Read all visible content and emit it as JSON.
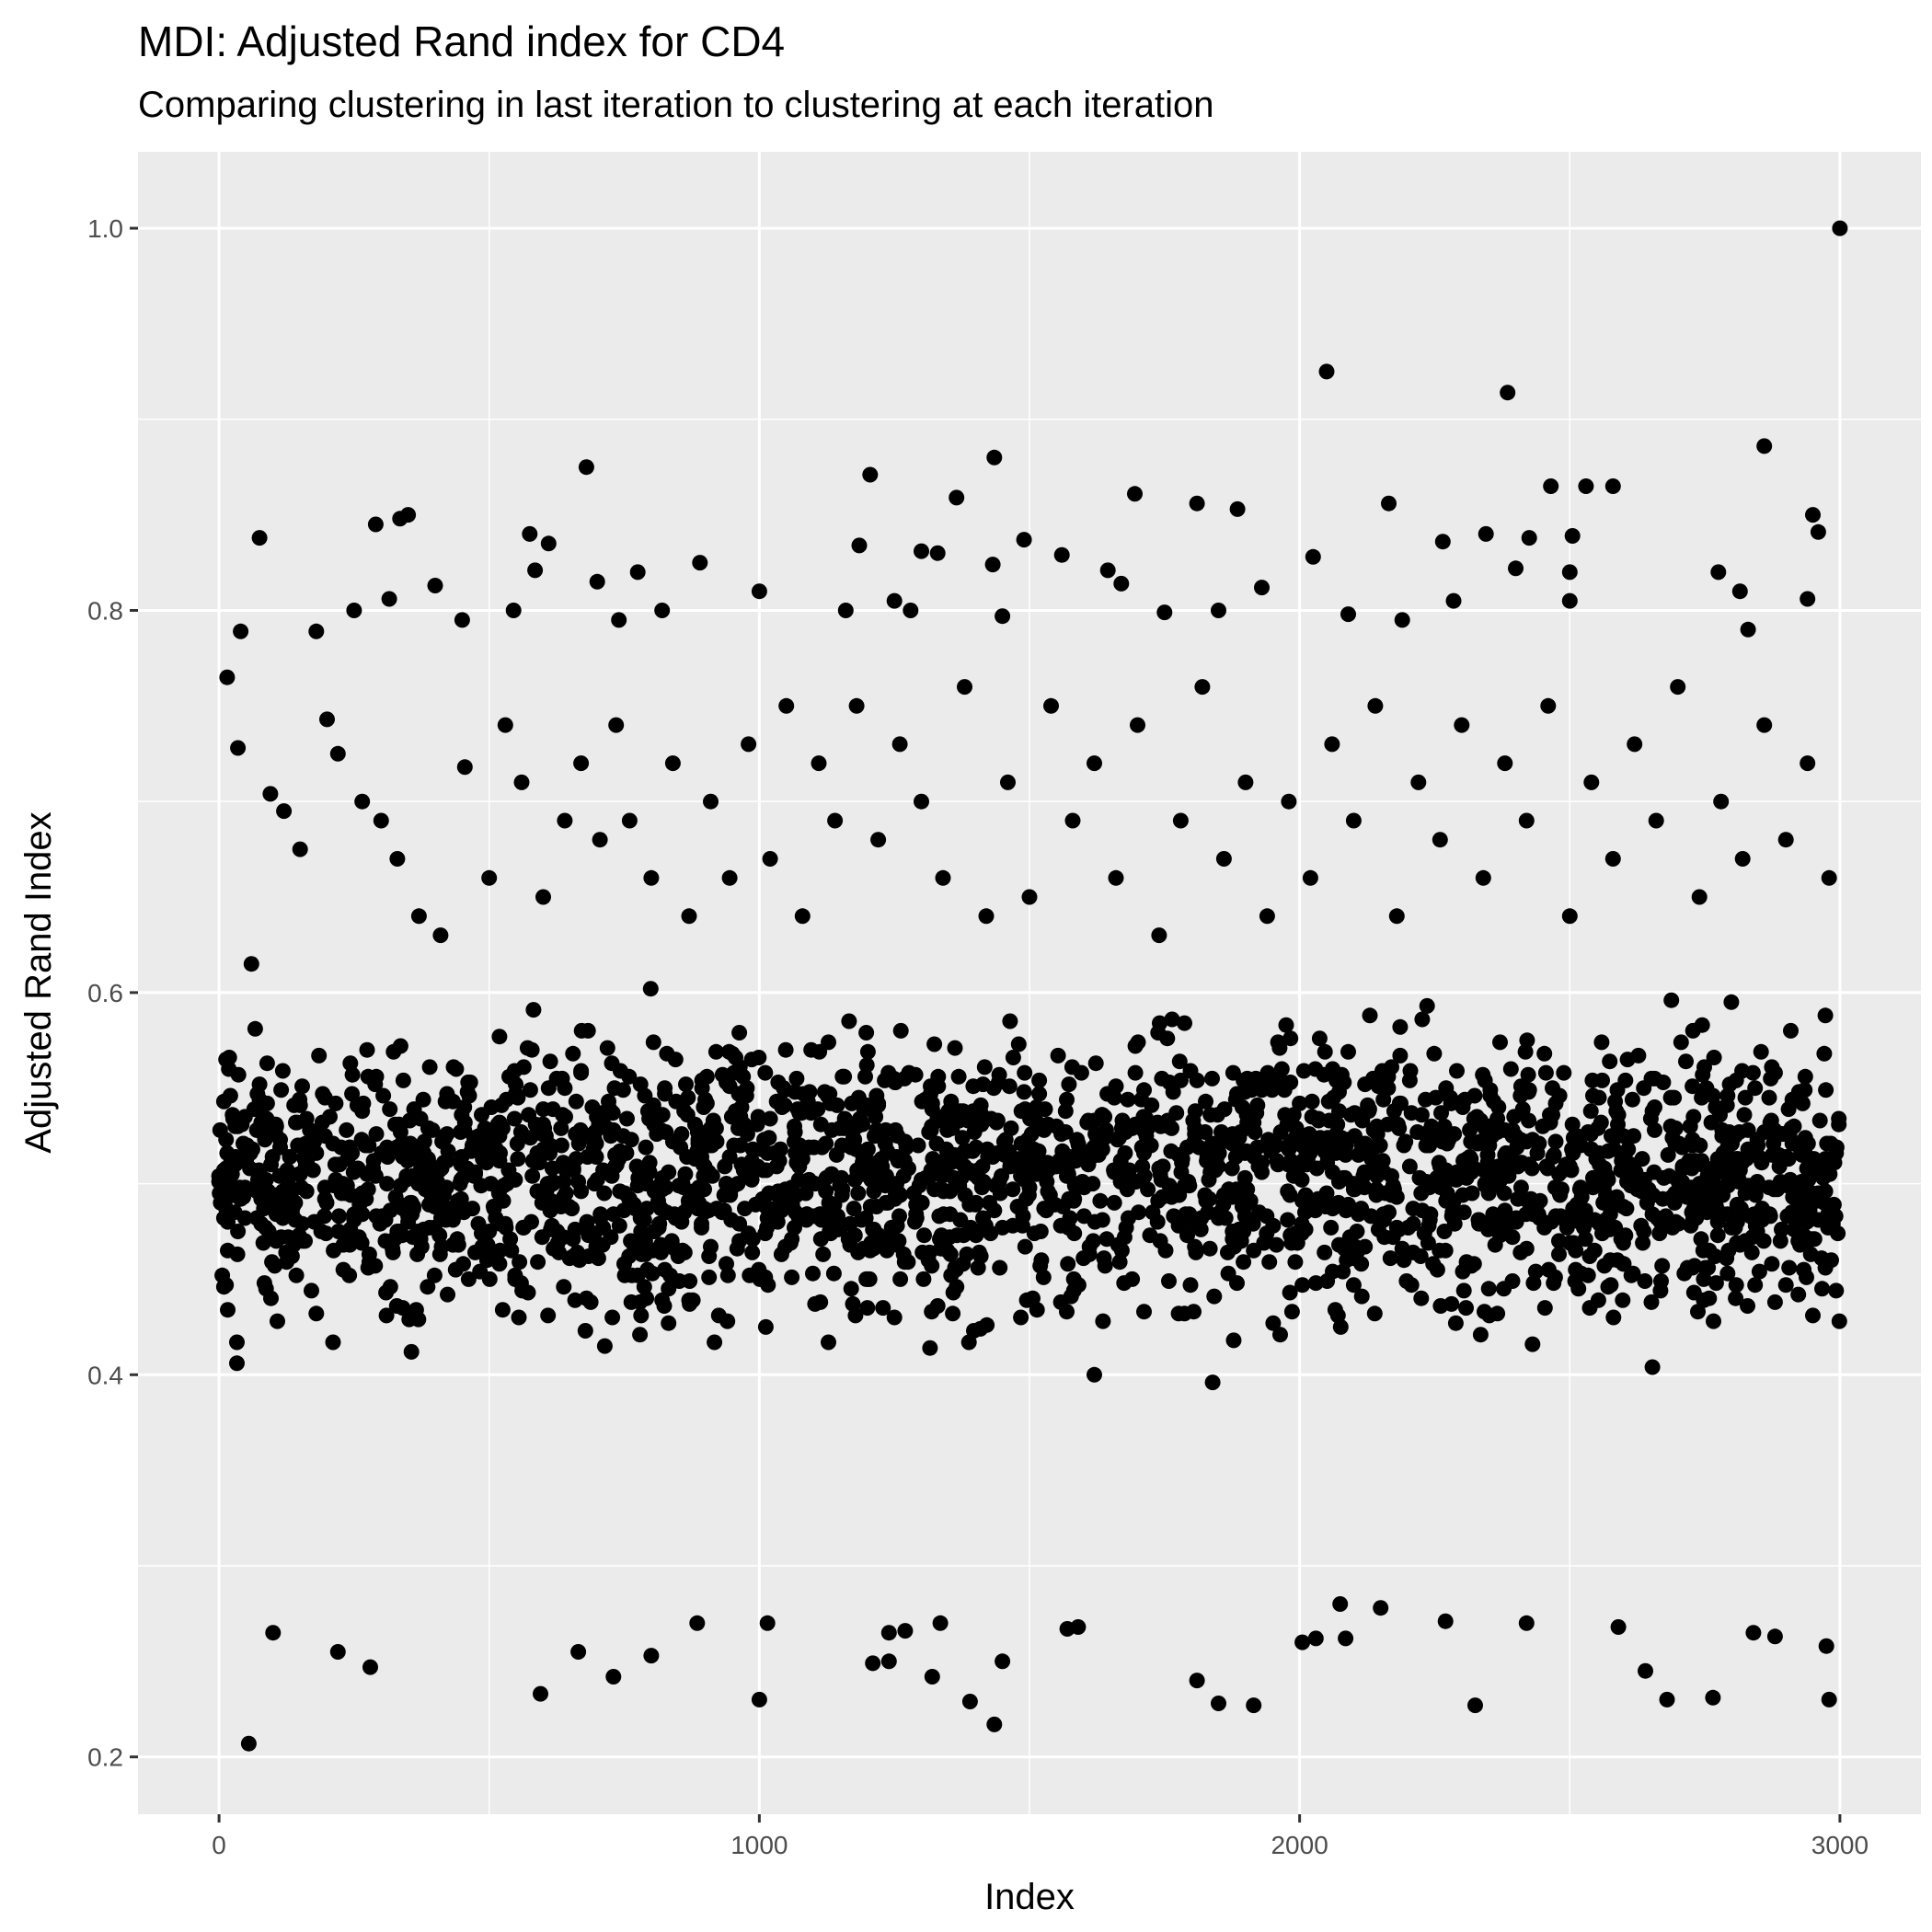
{
  "chart_data": {
    "type": "scatter",
    "title": "MDI: Adjusted Rand index for CD4",
    "subtitle": "Comparing clustering in last iteration to clustering at each iteration",
    "xlabel": "Index",
    "ylabel": "Adjusted Rand Index",
    "xlim": [
      -150,
      3150
    ],
    "ylim": [
      0.17,
      1.04
    ],
    "x_ticks": [
      0,
      1000,
      2000,
      3000
    ],
    "x_tick_labels": [
      "0",
      "1000",
      "2000",
      "3000"
    ],
    "y_ticks": [
      0.2,
      0.4,
      0.6,
      0.8,
      1.0
    ],
    "y_tick_labels": [
      "0.2",
      "0.4",
      "0.6",
      "0.8",
      "1.0"
    ],
    "grid": true,
    "panel_background": "#ebebeb",
    "gridline_color": "#ffffff",
    "point_color": "#000000",
    "point_count": 3000,
    "points": [
      [
        3000,
        1.0
      ],
      [
        2050,
        0.925
      ],
      [
        2385,
        0.914
      ],
      [
        2860,
        0.886
      ],
      [
        1435,
        0.88
      ],
      [
        680,
        0.875
      ],
      [
        1205,
        0.871
      ],
      [
        2465,
        0.865
      ],
      [
        2530,
        0.865
      ],
      [
        2580,
        0.865
      ],
      [
        1695,
        0.861
      ],
      [
        1365,
        0.859
      ],
      [
        1810,
        0.856
      ],
      [
        2165,
        0.856
      ],
      [
        1885,
        0.853
      ],
      [
        2950,
        0.85
      ],
      [
        350,
        0.85
      ],
      [
        335,
        0.848
      ],
      [
        290,
        0.845
      ],
      [
        2960,
        0.841
      ],
      [
        2345,
        0.84
      ],
      [
        75,
        0.838
      ],
      [
        575,
        0.84
      ],
      [
        2505,
        0.839
      ],
      [
        2425,
        0.838
      ],
      [
        1490,
        0.837
      ],
      [
        610,
        0.835
      ],
      [
        1185,
        0.834
      ],
      [
        2265,
        0.836
      ],
      [
        1300,
        0.831
      ],
      [
        1330,
        0.83
      ],
      [
        1560,
        0.829
      ],
      [
        2025,
        0.828
      ],
      [
        890,
        0.825
      ],
      [
        1432,
        0.824
      ],
      [
        2400,
        0.822
      ],
      [
        1645,
        0.821
      ],
      [
        585,
        0.821
      ],
      [
        2775,
        0.82
      ],
      [
        775,
        0.82
      ],
      [
        2500,
        0.82
      ],
      [
        1930,
        0.812
      ],
      [
        1670,
        0.814
      ],
      [
        400,
        0.813
      ],
      [
        1000,
        0.81
      ],
      [
        2940,
        0.806
      ],
      [
        40,
        0.789
      ],
      [
        15,
        0.765
      ],
      [
        180,
        0.789
      ],
      [
        250,
        0.8
      ],
      [
        315,
        0.806
      ],
      [
        450,
        0.795
      ],
      [
        545,
        0.8
      ],
      [
        700,
        0.815
      ],
      [
        740,
        0.795
      ],
      [
        820,
        0.8
      ],
      [
        1160,
        0.8
      ],
      [
        1250,
        0.805
      ],
      [
        1280,
        0.8
      ],
      [
        1450,
        0.797
      ],
      [
        1750,
        0.799
      ],
      [
        1850,
        0.8
      ],
      [
        2090,
        0.798
      ],
      [
        2190,
        0.795
      ],
      [
        2285,
        0.805
      ],
      [
        2500,
        0.805
      ],
      [
        2815,
        0.81
      ],
      [
        2830,
        0.79
      ],
      [
        35,
        0.728
      ],
      [
        60,
        0.615
      ],
      [
        95,
        0.704
      ],
      [
        120,
        0.695
      ],
      [
        150,
        0.675
      ],
      [
        200,
        0.743
      ],
      [
        220,
        0.725
      ],
      [
        265,
        0.7
      ],
      [
        300,
        0.69
      ],
      [
        330,
        0.67
      ],
      [
        370,
        0.64
      ],
      [
        410,
        0.63
      ],
      [
        455,
        0.718
      ],
      [
        500,
        0.66
      ],
      [
        530,
        0.74
      ],
      [
        560,
        0.71
      ],
      [
        600,
        0.65
      ],
      [
        640,
        0.69
      ],
      [
        670,
        0.72
      ],
      [
        705,
        0.68
      ],
      [
        735,
        0.74
      ],
      [
        760,
        0.69
      ],
      [
        800,
        0.66
      ],
      [
        840,
        0.72
      ],
      [
        870,
        0.64
      ],
      [
        910,
        0.7
      ],
      [
        945,
        0.66
      ],
      [
        980,
        0.73
      ],
      [
        1020,
        0.67
      ],
      [
        1050,
        0.75
      ],
      [
        1080,
        0.64
      ],
      [
        1110,
        0.72
      ],
      [
        1140,
        0.69
      ],
      [
        1180,
        0.75
      ],
      [
        1220,
        0.68
      ],
      [
        1260,
        0.73
      ],
      [
        1300,
        0.7
      ],
      [
        1340,
        0.66
      ],
      [
        1380,
        0.76
      ],
      [
        1420,
        0.64
      ],
      [
        1460,
        0.71
      ],
      [
        1500,
        0.65
      ],
      [
        1540,
        0.75
      ],
      [
        1580,
        0.69
      ],
      [
        1620,
        0.72
      ],
      [
        1660,
        0.66
      ],
      [
        1700,
        0.74
      ],
      [
        1740,
        0.63
      ],
      [
        1780,
        0.69
      ],
      [
        1820,
        0.76
      ],
      [
        1860,
        0.67
      ],
      [
        1900,
        0.71
      ],
      [
        1940,
        0.64
      ],
      [
        1980,
        0.7
      ],
      [
        2020,
        0.66
      ],
      [
        2060,
        0.73
      ],
      [
        2100,
        0.69
      ],
      [
        2140,
        0.75
      ],
      [
        2180,
        0.64
      ],
      [
        2220,
        0.71
      ],
      [
        2260,
        0.68
      ],
      [
        2300,
        0.74
      ],
      [
        2340,
        0.66
      ],
      [
        2380,
        0.72
      ],
      [
        2420,
        0.69
      ],
      [
        2460,
        0.75
      ],
      [
        2500,
        0.64
      ],
      [
        2540,
        0.71
      ],
      [
        2580,
        0.67
      ],
      [
        2620,
        0.73
      ],
      [
        2660,
        0.69
      ],
      [
        2700,
        0.76
      ],
      [
        2740,
        0.65
      ],
      [
        2780,
        0.7
      ],
      [
        2820,
        0.67
      ],
      [
        2860,
        0.74
      ],
      [
        2900,
        0.68
      ],
      [
        2940,
        0.72
      ],
      [
        2980,
        0.66
      ],
      [
        55,
        0.207
      ],
      [
        1435,
        0.217
      ],
      [
        1390,
        0.229
      ],
      [
        1000,
        0.23
      ],
      [
        595,
        0.233
      ],
      [
        1850,
        0.228
      ],
      [
        1915,
        0.227
      ],
      [
        2325,
        0.227
      ],
      [
        2680,
        0.23
      ],
      [
        2765,
        0.231
      ],
      [
        2980,
        0.23
      ],
      [
        2640,
        0.245
      ],
      [
        1320,
        0.242
      ],
      [
        730,
        0.242
      ],
      [
        1450,
        0.25
      ],
      [
        1810,
        0.24
      ],
      [
        100,
        0.265
      ],
      [
        280,
        0.247
      ],
      [
        220,
        0.255
      ],
      [
        665,
        0.255
      ],
      [
        800,
        0.253
      ],
      [
        1210,
        0.249
      ],
      [
        1240,
        0.25
      ],
      [
        2030,
        0.262
      ],
      [
        2085,
        0.262
      ],
      [
        2975,
        0.258
      ],
      [
        2840,
        0.265
      ],
      [
        2880,
        0.263
      ],
      [
        1240,
        0.265
      ],
      [
        1270,
        0.266
      ],
      [
        1570,
        0.267
      ],
      [
        1590,
        0.268
      ],
      [
        2420,
        0.27
      ],
      [
        2590,
        0.268
      ],
      [
        2150,
        0.278
      ],
      [
        2075,
        0.28
      ],
      [
        2270,
        0.271
      ],
      [
        1335,
        0.27
      ],
      [
        885,
        0.27
      ],
      [
        1015,
        0.27
      ],
      [
        2005,
        0.26
      ]
    ]
  }
}
